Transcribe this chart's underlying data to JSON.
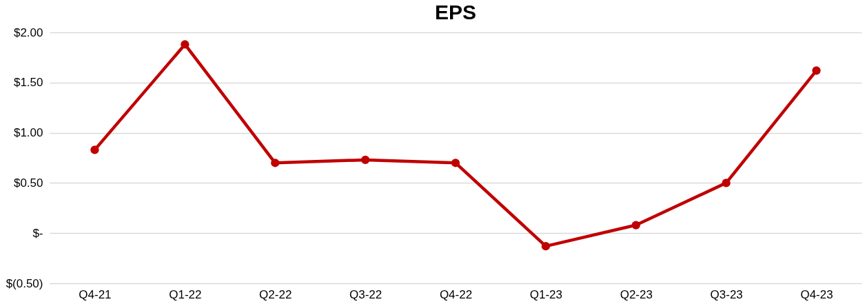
{
  "chart_data": {
    "type": "line",
    "title": "EPS",
    "categories": [
      "Q4-21",
      "Q1-22",
      "Q2-22",
      "Q3-22",
      "Q4-22",
      "Q1-23",
      "Q2-23",
      "Q3-23",
      "Q4-23"
    ],
    "series": [
      {
        "color": "#c00000",
        "values": [
          0.83,
          1.88,
          0.7,
          0.73,
          0.7,
          -0.13,
          0.08,
          0.5,
          1.62
        ]
      }
    ],
    "ylim": [
      -0.5,
      2
    ],
    "yticks": [
      {
        "value": -0.5,
        "label": "$(0.50)"
      },
      {
        "value": 0,
        "label": "$-"
      },
      {
        "value": 0.5,
        "label": "$0.50"
      },
      {
        "value": 1,
        "label": "$1.00"
      },
      {
        "value": 1.5,
        "label": "$1.50"
      },
      {
        "value": 2,
        "label": "$2.00"
      }
    ],
    "grid": "y",
    "marker": "circle",
    "line_style": "solid",
    "legend": false
  }
}
